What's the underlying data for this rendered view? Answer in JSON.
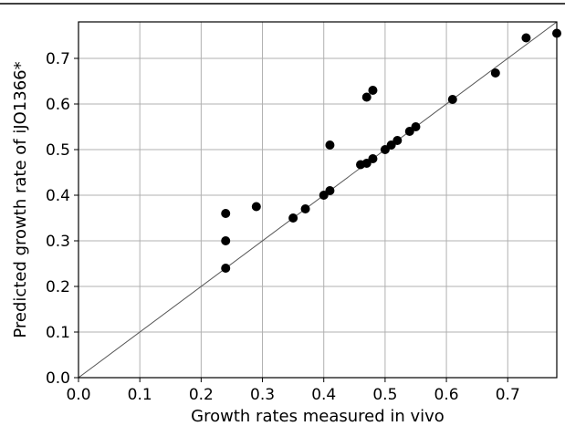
{
  "chart_data": {
    "type": "scatter",
    "xlabel": "Growth rates measured in vivo",
    "ylabel": "Predicted growth rate of iJO1366*",
    "xlim": [
      0.0,
      0.78
    ],
    "ylim": [
      0.0,
      0.78
    ],
    "x_ticks": [
      "0.0",
      "0.1",
      "0.2",
      "0.3",
      "0.4",
      "0.5",
      "0.6",
      "0.7"
    ],
    "y_ticks": [
      "0.0",
      "0.1",
      "0.2",
      "0.3",
      "0.4",
      "0.5",
      "0.6",
      "0.7"
    ],
    "grid": true,
    "reference_line": "y = x",
    "marker_color": "#000000",
    "points": [
      {
        "x": 0.24,
        "y": 0.36
      },
      {
        "x": 0.24,
        "y": 0.3
      },
      {
        "x": 0.24,
        "y": 0.24
      },
      {
        "x": 0.29,
        "y": 0.375
      },
      {
        "x": 0.35,
        "y": 0.35
      },
      {
        "x": 0.37,
        "y": 0.37
      },
      {
        "x": 0.4,
        "y": 0.4
      },
      {
        "x": 0.41,
        "y": 0.41
      },
      {
        "x": 0.41,
        "y": 0.51
      },
      {
        "x": 0.46,
        "y": 0.467
      },
      {
        "x": 0.47,
        "y": 0.47
      },
      {
        "x": 0.47,
        "y": 0.615
      },
      {
        "x": 0.48,
        "y": 0.48
      },
      {
        "x": 0.48,
        "y": 0.63
      },
      {
        "x": 0.5,
        "y": 0.5
      },
      {
        "x": 0.51,
        "y": 0.51
      },
      {
        "x": 0.52,
        "y": 0.52
      },
      {
        "x": 0.54,
        "y": 0.54
      },
      {
        "x": 0.55,
        "y": 0.55
      },
      {
        "x": 0.61,
        "y": 0.61
      },
      {
        "x": 0.68,
        "y": 0.668
      },
      {
        "x": 0.73,
        "y": 0.745
      },
      {
        "x": 0.78,
        "y": 0.755
      }
    ]
  }
}
